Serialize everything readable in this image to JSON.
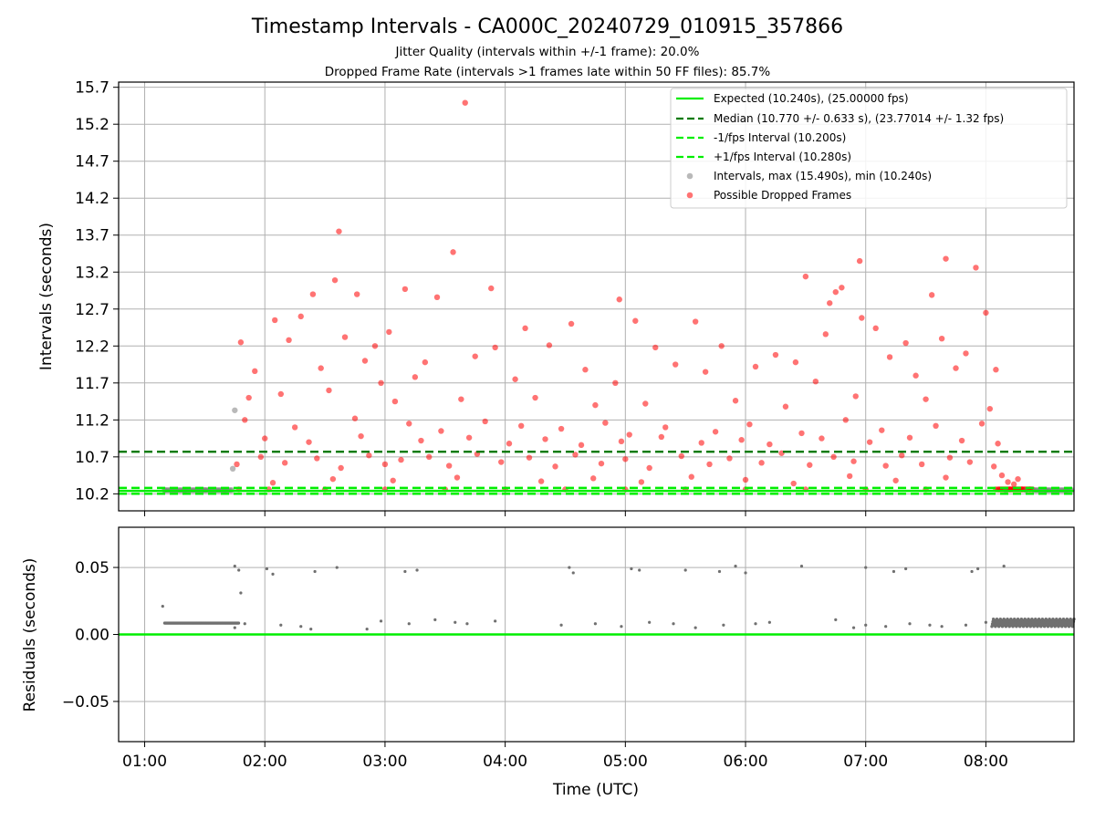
{
  "chart_data": [
    {
      "type": "scatter",
      "title": "Timestamp Intervals - CA000C_20240729_010915_357866",
      "subtitle_lines": [
        "Jitter Quality (intervals within +/-1 frame): 20.0%",
        "Dropped Frame Rate (intervals >1 frames late within 50 FF files): 85.7%"
      ],
      "xlabel": "",
      "ylabel": "Intervals (seconds)",
      "xlim": [
        "00:47",
        "08:44"
      ],
      "ylim": [
        9.97,
        15.77
      ],
      "yticks": [
        "10.2",
        "10.7",
        "11.2",
        "11.7",
        "12.2",
        "12.7",
        "13.2",
        "13.7",
        "14.2",
        "14.7",
        "15.2",
        "15.7"
      ],
      "xticks": [
        "01:00",
        "02:00",
        "03:00",
        "04:00",
        "05:00",
        "06:00",
        "07:00",
        "08:00"
      ],
      "grid": true,
      "legend_position": "upper right",
      "reference_lines": [
        {
          "label": "Expected (10.240s), (25.00000 fps)",
          "y": 10.24,
          "color": "#00ee00",
          "style": "solid"
        },
        {
          "label": "Median (10.770 +/- 0.633 s), (23.77014 +/- 1.32 fps)",
          "y": 10.77,
          "color": "#007a00",
          "style": "dashed"
        },
        {
          "label": "-1/fps Interval (10.200s)",
          "y": 10.2,
          "color": "#00ee00",
          "style": "dashed"
        },
        {
          "label": "+1/fps Interval (10.280s)",
          "y": 10.28,
          "color": "#00ee00",
          "style": "dashed"
        }
      ],
      "series": [
        {
          "name": "Intervals, max (15.490s), min (10.240s)",
          "color": "#808080",
          "points": [
            [
              "01:10",
              10.25
            ],
            [
              "01:20",
              10.25
            ],
            [
              "01:30",
              10.25
            ],
            [
              "01:40",
              10.25
            ],
            [
              "01:44",
              10.54
            ],
            [
              "01:45",
              11.33
            ],
            [
              "08:10",
              10.25
            ],
            [
              "08:20",
              10.25
            ],
            [
              "08:30",
              10.25
            ],
            [
              "08:40",
              10.25
            ]
          ]
        },
        {
          "name": "Possible Dropped Frames",
          "color": "#ff0000",
          "points": [
            [
              "03:40",
              15.49
            ],
            [
              "02:37",
              13.75
            ],
            [
              "03:34",
              13.47
            ],
            [
              "02:35",
              13.09
            ],
            [
              "06:30",
              13.14
            ],
            [
              "06:57",
              13.35
            ],
            [
              "07:40",
              13.38
            ],
            [
              "07:55",
              13.26
            ],
            [
              "03:10",
              12.97
            ],
            [
              "03:53",
              12.98
            ],
            [
              "06:48",
              12.99
            ],
            [
              "02:46",
              12.9
            ],
            [
              "03:26",
              12.86
            ],
            [
              "02:24",
              12.9
            ],
            [
              "04:57",
              12.83
            ],
            [
              "06:45",
              12.93
            ],
            [
              "07:33",
              12.89
            ],
            [
              "06:42",
              12.78
            ],
            [
              "08:00",
              12.65
            ],
            [
              "05:05",
              12.54
            ],
            [
              "05:35",
              12.53
            ],
            [
              "02:05",
              12.55
            ],
            [
              "02:18",
              12.6
            ],
            [
              "06:58",
              12.58
            ],
            [
              "04:33",
              12.5
            ],
            [
              "04:10",
              12.44
            ],
            [
              "07:05",
              12.44
            ],
            [
              "02:40",
              12.32
            ],
            [
              "03:02",
              12.39
            ],
            [
              "06:40",
              12.36
            ],
            [
              "07:38",
              12.3
            ],
            [
              "02:55",
              12.2
            ],
            [
              "03:55",
              12.18
            ],
            [
              "04:22",
              12.21
            ],
            [
              "05:15",
              12.18
            ],
            [
              "05:48",
              12.2
            ],
            [
              "06:15",
              12.08
            ],
            [
              "07:20",
              12.24
            ],
            [
              "01:48",
              12.25
            ],
            [
              "02:12",
              12.28
            ],
            [
              "02:50",
              12.0
            ],
            [
              "03:20",
              11.98
            ],
            [
              "03:45",
              12.06
            ],
            [
              "04:40",
              11.88
            ],
            [
              "05:25",
              11.95
            ],
            [
              "06:05",
              11.92
            ],
            [
              "06:25",
              11.98
            ],
            [
              "07:12",
              12.05
            ],
            [
              "07:50",
              12.1
            ],
            [
              "08:05",
              11.88
            ],
            [
              "01:55",
              11.86
            ],
            [
              "02:28",
              11.9
            ],
            [
              "02:58",
              11.7
            ],
            [
              "03:15",
              11.78
            ],
            [
              "04:05",
              11.75
            ],
            [
              "04:55",
              11.7
            ],
            [
              "05:40",
              11.85
            ],
            [
              "06:35",
              11.72
            ],
            [
              "07:25",
              11.8
            ],
            [
              "07:45",
              11.9
            ],
            [
              "01:52",
              11.5
            ],
            [
              "02:08",
              11.55
            ],
            [
              "02:32",
              11.6
            ],
            [
              "03:05",
              11.45
            ],
            [
              "03:38",
              11.48
            ],
            [
              "04:15",
              11.5
            ],
            [
              "04:45",
              11.4
            ],
            [
              "05:10",
              11.42
            ],
            [
              "05:55",
              11.46
            ],
            [
              "06:20",
              11.38
            ],
            [
              "06:55",
              11.52
            ],
            [
              "07:30",
              11.48
            ],
            [
              "08:02",
              11.35
            ],
            [
              "01:50",
              11.2
            ],
            [
              "02:15",
              11.1
            ],
            [
              "02:45",
              11.22
            ],
            [
              "03:12",
              11.15
            ],
            [
              "03:28",
              11.05
            ],
            [
              "03:50",
              11.18
            ],
            [
              "04:08",
              11.12
            ],
            [
              "04:28",
              11.08
            ],
            [
              "04:50",
              11.16
            ],
            [
              "05:02",
              11.0
            ],
            [
              "05:20",
              11.1
            ],
            [
              "05:45",
              11.04
            ],
            [
              "06:02",
              11.14
            ],
            [
              "06:28",
              11.02
            ],
            [
              "06:50",
              11.2
            ],
            [
              "07:08",
              11.06
            ],
            [
              "07:35",
              11.12
            ],
            [
              "07:58",
              11.15
            ],
            [
              "02:00",
              10.95
            ],
            [
              "02:22",
              10.9
            ],
            [
              "02:48",
              10.98
            ],
            [
              "03:18",
              10.92
            ],
            [
              "03:42",
              10.96
            ],
            [
              "04:02",
              10.88
            ],
            [
              "04:20",
              10.94
            ],
            [
              "04:38",
              10.86
            ],
            [
              "04:58",
              10.91
            ],
            [
              "05:18",
              10.97
            ],
            [
              "05:38",
              10.89
            ],
            [
              "05:58",
              10.93
            ],
            [
              "06:12",
              10.87
            ],
            [
              "06:38",
              10.95
            ],
            [
              "07:02",
              10.9
            ],
            [
              "07:22",
              10.96
            ],
            [
              "07:48",
              10.92
            ],
            [
              "08:06",
              10.88
            ],
            [
              "01:46",
              10.6
            ],
            [
              "01:58",
              10.7
            ],
            [
              "02:10",
              10.62
            ],
            [
              "02:26",
              10.68
            ],
            [
              "02:38",
              10.55
            ],
            [
              "02:52",
              10.72
            ],
            [
              "03:00",
              10.6
            ],
            [
              "03:08",
              10.66
            ],
            [
              "03:22",
              10.7
            ],
            [
              "03:32",
              10.58
            ],
            [
              "03:46",
              10.74
            ],
            [
              "03:58",
              10.63
            ],
            [
              "04:12",
              10.69
            ],
            [
              "04:25",
              10.57
            ],
            [
              "04:35",
              10.73
            ],
            [
              "04:48",
              10.61
            ],
            [
              "05:00",
              10.67
            ],
            [
              "05:12",
              10.55
            ],
            [
              "05:28",
              10.71
            ],
            [
              "05:42",
              10.6
            ],
            [
              "05:52",
              10.68
            ],
            [
              "06:08",
              10.62
            ],
            [
              "06:18",
              10.75
            ],
            [
              "06:32",
              10.59
            ],
            [
              "06:44",
              10.7
            ],
            [
              "06:54",
              10.64
            ],
            [
              "07:10",
              10.58
            ],
            [
              "07:18",
              10.72
            ],
            [
              "07:28",
              10.6
            ],
            [
              "07:42",
              10.69
            ],
            [
              "07:52",
              10.63
            ],
            [
              "08:04",
              10.57
            ],
            [
              "08:08",
              10.45
            ],
            [
              "08:11",
              10.36
            ],
            [
              "08:14",
              10.33
            ],
            [
              "08:16",
              10.4
            ],
            [
              "02:04",
              10.35
            ],
            [
              "02:34",
              10.4
            ],
            [
              "03:04",
              10.38
            ],
            [
              "03:36",
              10.42
            ],
            [
              "04:18",
              10.37
            ],
            [
              "04:44",
              10.41
            ],
            [
              "05:08",
              10.36
            ],
            [
              "05:33",
              10.43
            ],
            [
              "06:00",
              10.39
            ],
            [
              "06:24",
              10.34
            ],
            [
              "06:52",
              10.44
            ],
            [
              "07:15",
              10.38
            ],
            [
              "07:40",
              10.42
            ],
            [
              "01:47",
              10.26
            ],
            [
              "02:02",
              10.26
            ],
            [
              "02:30",
              10.26
            ],
            [
              "03:00",
              10.26
            ],
            [
              "03:30",
              10.26
            ],
            [
              "04:00",
              10.26
            ],
            [
              "04:30",
              10.26
            ],
            [
              "05:00",
              10.26
            ],
            [
              "05:30",
              10.26
            ],
            [
              "06:00",
              10.26
            ],
            [
              "06:30",
              10.26
            ],
            [
              "07:00",
              10.26
            ],
            [
              "07:30",
              10.26
            ],
            [
              "08:05",
              10.26
            ],
            [
              "08:12",
              10.26
            ],
            [
              "08:18",
              10.26
            ],
            [
              "08:22",
              10.26
            ]
          ]
        }
      ]
    },
    {
      "type": "scatter",
      "title": "",
      "xlabel": "Time (UTC)",
      "ylabel": "Residuals (seconds)",
      "xlim": [
        "00:47",
        "08:44"
      ],
      "ylim": [
        -0.08,
        0.08
      ],
      "yticks": [
        "0.05",
        "0.00",
        "−0.05"
      ],
      "xticks": [
        "01:00",
        "02:00",
        "03:00",
        "04:00",
        "05:00",
        "06:00",
        "07:00",
        "08:00"
      ],
      "grid": true,
      "reference_lines": [
        {
          "y": 0.0,
          "color": "#00ee00",
          "style": "solid"
        }
      ],
      "series": [
        {
          "color": "#707070",
          "points": [
            [
              "01:09",
              0.021
            ],
            [
              "01:45",
              0.051
            ],
            [
              "01:47",
              0.048
            ],
            [
              "01:48",
              0.031
            ],
            [
              "02:01",
              0.049
            ],
            [
              "02:04",
              0.045
            ],
            [
              "02:25",
              0.047
            ],
            [
              "02:36",
              0.05
            ],
            [
              "03:10",
              0.047
            ],
            [
              "03:16",
              0.048
            ],
            [
              "04:32",
              0.05
            ],
            [
              "04:34",
              0.046
            ],
            [
              "05:03",
              0.049
            ],
            [
              "05:07",
              0.048
            ],
            [
              "05:30",
              0.048
            ],
            [
              "05:47",
              0.047
            ],
            [
              "05:55",
              0.051
            ],
            [
              "06:00",
              0.046
            ],
            [
              "06:28",
              0.051
            ],
            [
              "07:00",
              0.05
            ],
            [
              "07:14",
              0.047
            ],
            [
              "07:20",
              0.049
            ],
            [
              "07:53",
              0.047
            ],
            [
              "07:56",
              0.049
            ],
            [
              "08:09",
              0.051
            ],
            [
              "01:45",
              0.005
            ],
            [
              "01:50",
              0.008
            ],
            [
              "02:08",
              0.007
            ],
            [
              "02:18",
              0.006
            ],
            [
              "02:23",
              0.004
            ],
            [
              "02:51",
              0.004
            ],
            [
              "02:58",
              0.01
            ],
            [
              "03:12",
              0.008
            ],
            [
              "03:25",
              0.011
            ],
            [
              "03:35",
              0.009
            ],
            [
              "03:41",
              0.008
            ],
            [
              "03:55",
              0.01
            ],
            [
              "04:28",
              0.007
            ],
            [
              "04:45",
              0.008
            ],
            [
              "04:58",
              0.006
            ],
            [
              "05:12",
              0.009
            ],
            [
              "05:24",
              0.008
            ],
            [
              "05:35",
              0.005
            ],
            [
              "05:49",
              0.007
            ],
            [
              "06:05",
              0.008
            ],
            [
              "06:12",
              0.009
            ],
            [
              "06:45",
              0.011
            ],
            [
              "06:54",
              0.005
            ],
            [
              "07:00",
              0.007
            ],
            [
              "07:10",
              0.006
            ],
            [
              "07:22",
              0.008
            ],
            [
              "07:32",
              0.007
            ],
            [
              "07:38",
              0.006
            ],
            [
              "07:50",
              0.007
            ],
            [
              "08:00",
              0.009
            ]
          ]
        }
      ]
    }
  ]
}
